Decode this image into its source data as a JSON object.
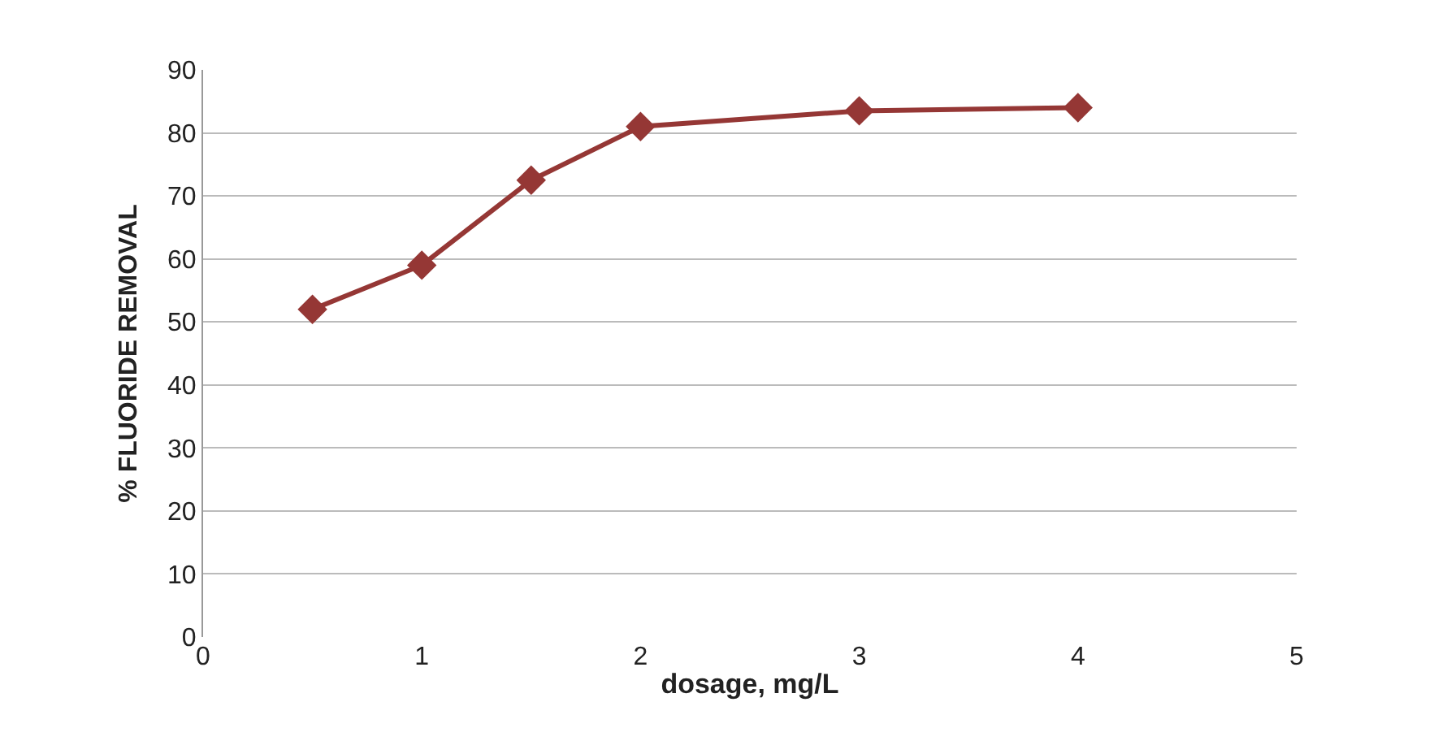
{
  "chart_data": {
    "type": "line",
    "xlabel": "dosage, mg/L",
    "ylabel": "% FLUORIDE REMOVAL",
    "x": [
      0.5,
      1,
      1.5,
      2,
      3,
      4
    ],
    "series": [
      {
        "color": "#953735",
        "values": [
          52,
          59,
          72.5,
          81,
          83.5,
          84
        ]
      }
    ],
    "xlim": [
      0,
      5
    ],
    "xticks": [
      0,
      1,
      2,
      3,
      4,
      5
    ],
    "ylim": [
      0,
      90
    ],
    "yticks": [
      0,
      10,
      20,
      30,
      40,
      50,
      60,
      70,
      80,
      90
    ],
    "grid": "y",
    "marker": "diamond",
    "line_style": "solid"
  }
}
